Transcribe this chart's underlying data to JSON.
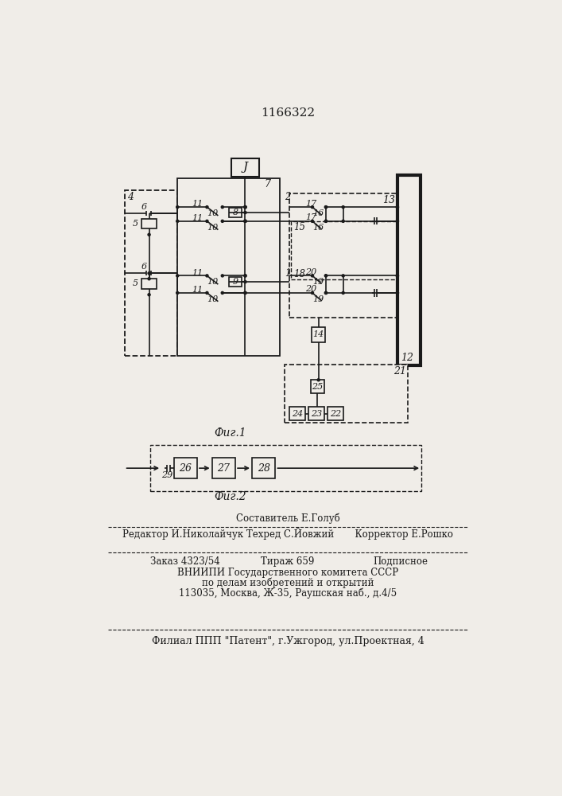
{
  "title": "1166322",
  "bg_color": "#f0ede8",
  "lc": "#1a1a1a",
  "fig1_label": "Фиг.1",
  "fig2_label": "Фиг.2",
  "footer": {
    "line1": "Составитель Е.Голуб",
    "line2": "Редактор И.Николайчук Техред С.Йовжий       Корректор Е.Рошко",
    "line3a": "Заказ 4323/54",
    "line3b": "Тираж 659",
    "line3c": "Подписное",
    "line4": "ВНИИПИ Государственного комитета СССР",
    "line5": "по делам изобретений и открытий",
    "line6": "113035, Москва, Ж-35, Раушская наб., д.4/5",
    "line7": "Филиал ППП \"Патент\", г.Ужгород, ул.Проектная, 4"
  }
}
